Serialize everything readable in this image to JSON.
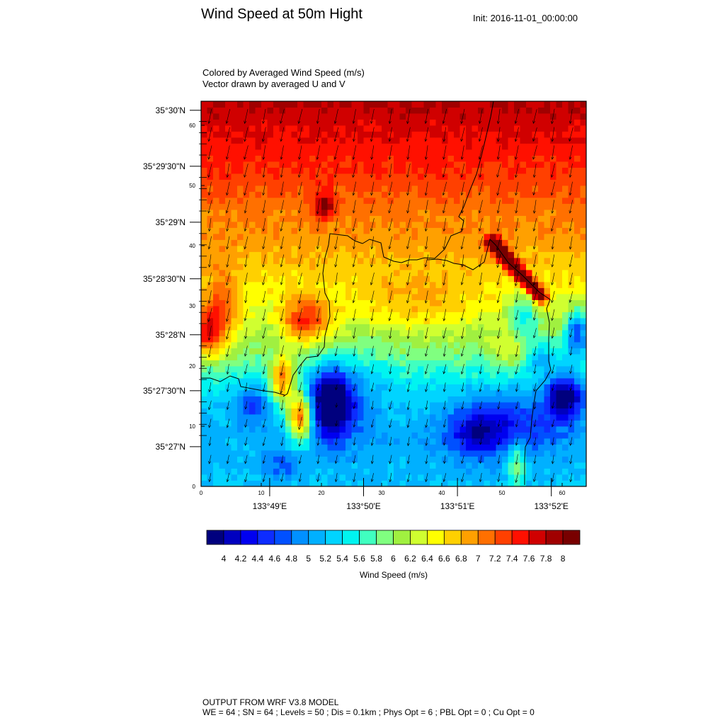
{
  "header": {
    "title": "Wind Speed at 50m Hight",
    "init": "Init: 2016-11-01_00:00:00",
    "subtitle_1": "Colored by Averaged Wind Speed (m/s)",
    "subtitle_2": "Vector drawn by averaged U and V"
  },
  "footer": {
    "line_1": "OUTPUT FROM WRF V3.8 MODEL",
    "line_2": "WE = 64 ; SN = 64 ; Levels = 50 ; Dis = 0.1km ; Phys Opt = 6 ; PBL Opt = 0 ; Cu Opt = 0"
  },
  "chart_data": {
    "type": "heatmap",
    "title": "Wind Speed at 50m Hight",
    "colorbar_label": "Wind Speed (m/s)",
    "grid_size": [
      64,
      64
    ],
    "xlim": [
      0,
      64
    ],
    "ylim": [
      0,
      64
    ],
    "grid_index_ticks": {
      "x": [
        0,
        10,
        20,
        30,
        40,
        50,
        60
      ],
      "y": [
        0,
        10,
        20,
        30,
        40,
        50,
        60
      ]
    },
    "lat_ticks": [
      {
        "label": "35°30'N",
        "y": 62.5
      },
      {
        "label": "35°29'30\"N",
        "y": 53.2
      },
      {
        "label": "35°29'N",
        "y": 43.9
      },
      {
        "label": "35°28'30\"N",
        "y": 34.5
      },
      {
        "label": "35°28'N",
        "y": 25.2
      },
      {
        "label": "35°27'30\"N",
        "y": 15.9
      },
      {
        "label": "35°27'N",
        "y": 6.6
      }
    ],
    "lon_ticks": [
      {
        "label": "133°49'E",
        "x": 11.4
      },
      {
        "label": "133°50'E",
        "x": 27.0
      },
      {
        "label": "133°51'E",
        "x": 42.6
      },
      {
        "label": "133°52'E",
        "x": 58.2
      }
    ],
    "colorbar_levels": [
      "4",
      "4.2",
      "4.4",
      "4.6",
      "4.8",
      "5",
      "5.2",
      "5.4",
      "5.6",
      "5.8",
      "6",
      "6.2",
      "6.4",
      "6.6",
      "6.8",
      "7",
      "7.2",
      "7.4",
      "7.6",
      "7.8",
      "8"
    ],
    "colors": [
      "#00007e",
      "#0000c0",
      "#0000f0",
      "#0d2cff",
      "#0050ff",
      "#0090ff",
      "#00b0ff",
      "#00d4ff",
      "#00f4f0",
      "#40ffc0",
      "#80ff80",
      "#a0f040",
      "#d0ff30",
      "#ffff00",
      "#ffd000",
      "#ffa000",
      "#ff7000",
      "#ff4000",
      "#ff1000",
      "#d00000",
      "#a00000",
      "#780000"
    ],
    "wind_speed_field": {
      "description": "Approximate averaged wind speed (m/s) estimated visually, defined as a base north-south profile plus local anomalies",
      "base_profile_by_row": [
        {
          "row": 0,
          "speed": 5.2
        },
        {
          "row": 8,
          "speed": 5.1
        },
        {
          "row": 16,
          "speed": 5.4
        },
        {
          "row": 22,
          "speed": 5.9
        },
        {
          "row": 28,
          "speed": 6.3
        },
        {
          "row": 34,
          "speed": 6.6
        },
        {
          "row": 40,
          "speed": 6.9
        },
        {
          "row": 46,
          "speed": 7.1
        },
        {
          "row": 52,
          "speed": 7.4
        },
        {
          "row": 58,
          "speed": 7.6
        },
        {
          "row": 63,
          "speed": 7.8
        }
      ],
      "anomalies": [
        {
          "x": 21,
          "y": 13.5,
          "rx": 3,
          "ry": 5,
          "delta": -1.7
        },
        {
          "x": 23,
          "y": 14,
          "rx": 6,
          "ry": 7,
          "delta": -0.6
        },
        {
          "x": 16,
          "y": 11,
          "rx": 2,
          "ry": 4,
          "delta": 2.0
        },
        {
          "x": 13,
          "y": 17,
          "rx": 2,
          "ry": 4,
          "delta": 1.6
        },
        {
          "x": 17,
          "y": 27,
          "rx": 4,
          "ry": 4,
          "delta": 1.2
        },
        {
          "x": 8,
          "y": 13,
          "rx": 3,
          "ry": 3,
          "delta": -0.7
        },
        {
          "x": 13,
          "y": 3,
          "rx": 3,
          "ry": 2.5,
          "delta": -0.5
        },
        {
          "x": 3,
          "y": 28,
          "rx": 3,
          "ry": 7,
          "delta": 0.9
        },
        {
          "x": 0.5,
          "y": 25,
          "rx": 2,
          "ry": 4,
          "delta": 1.2
        },
        {
          "x": 20,
          "y": 46,
          "rx": 1.5,
          "ry": 2,
          "delta": 1.1
        },
        {
          "x": 50,
          "y": 10,
          "rx": 9,
          "ry": 5,
          "delta": -0.8
        },
        {
          "x": 45,
          "y": 8,
          "rx": 4,
          "ry": 4,
          "delta": -0.6
        },
        {
          "x": 60,
          "y": 14.5,
          "rx": 3,
          "ry": 3.5,
          "delta": -1.6
        },
        {
          "x": 62,
          "y": 25,
          "rx": 2,
          "ry": 4,
          "delta": -1.5
        },
        {
          "x": 53,
          "y": 28,
          "rx": 2.5,
          "ry": 4,
          "delta": -0.8
        },
        {
          "x": 56,
          "y": 21,
          "rx": 3,
          "ry": 3,
          "delta": -0.7
        },
        {
          "x": 51,
          "y": 22,
          "rx": 3,
          "ry": 3,
          "delta": 0.5
        },
        {
          "x": 52,
          "y": 3,
          "rx": 1.5,
          "ry": 4,
          "delta": 0.9
        },
        {
          "x": 36,
          "y": 30,
          "rx": 10,
          "ry": 5,
          "delta": 0.4
        }
      ],
      "ridges": [
        {
          "x1": 48,
          "y1": 40,
          "x2": 56,
          "y2": 31,
          "width": 1.1,
          "delta": 2.2
        }
      ]
    },
    "wind_vectors": {
      "spacing": 3,
      "direction": "mostly from north, slightly from north-northeast",
      "u": -0.2,
      "v": -1.0
    }
  }
}
